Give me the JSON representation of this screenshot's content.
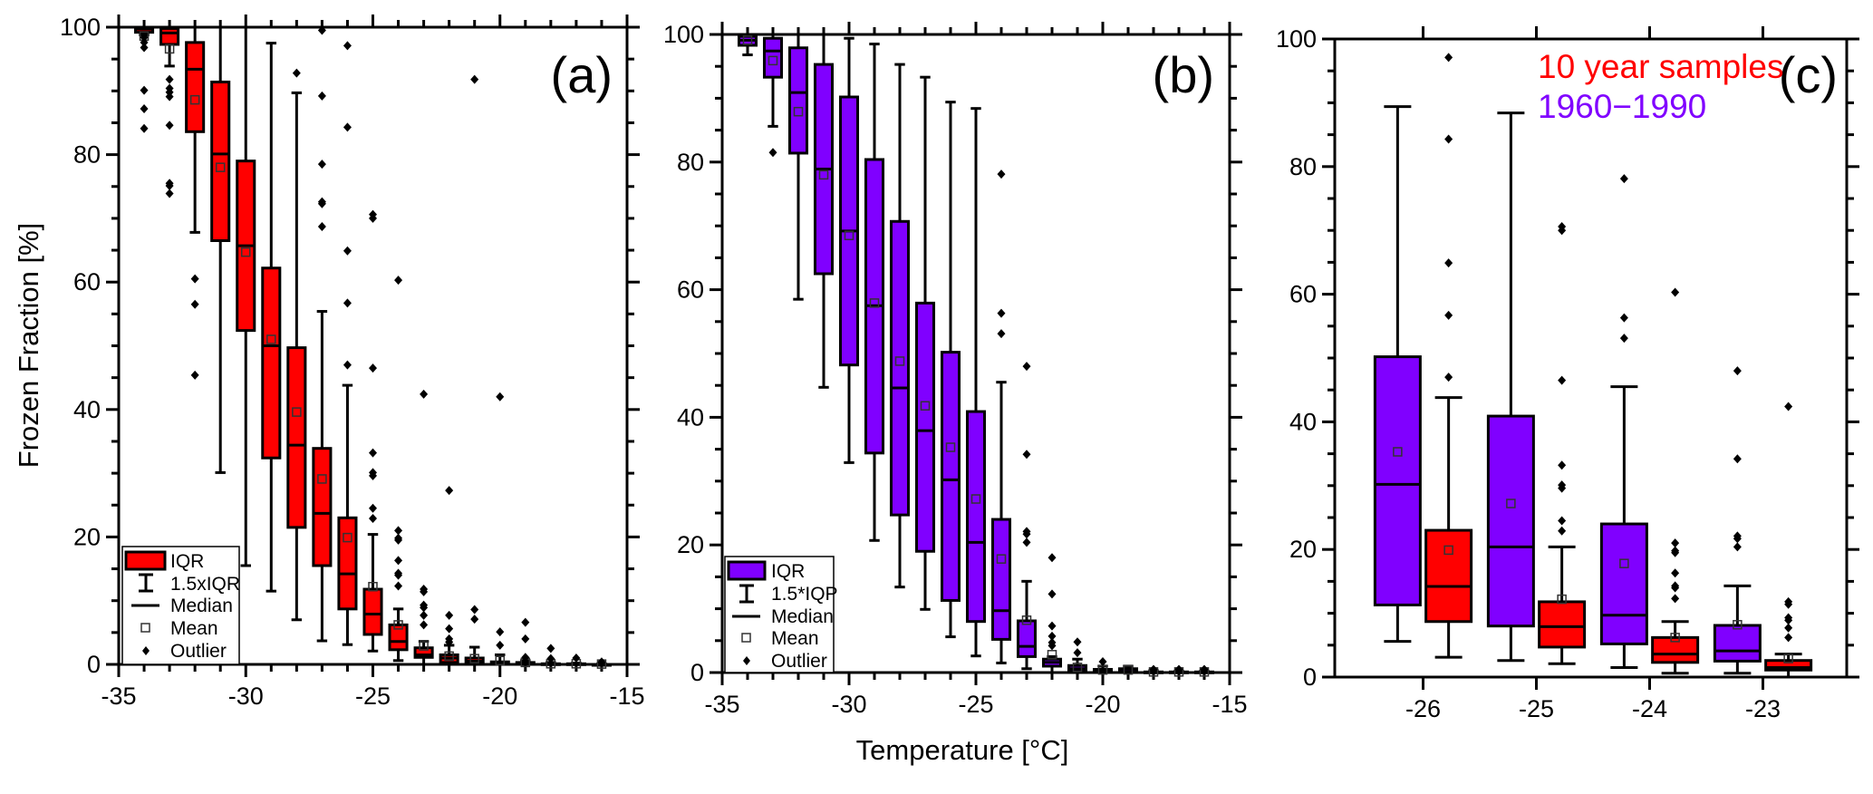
{
  "figure": {
    "ylabel": "Frozen Fraction [%]",
    "xlabel": "Temperature [°C]"
  },
  "legend_a": {
    "items": [
      "IQR",
      "1.5xIQR",
      "Median",
      "Mean",
      "Outlier"
    ]
  },
  "legend_b": {
    "items": [
      "IQR",
      "1.5*IQP",
      "Median",
      "Mean",
      "Outlier"
    ]
  },
  "legend_c": {
    "items": [
      "10 year samples",
      "1960−1990"
    ]
  },
  "colors": {
    "red": "#ff0000",
    "purple": "#8000ff",
    "outline": "#000000"
  },
  "chart_data": [
    {
      "type": "box",
      "panel_label": "(a)",
      "xlabel": "Temperature [°C]",
      "ylabel": "Frozen Fraction [%]",
      "xlim": [
        -35,
        -15
      ],
      "ylim": [
        0,
        100
      ],
      "x_ticks": [
        -35,
        -30,
        -25,
        -20,
        -15
      ],
      "y_ticks": [
        0,
        20,
        40,
        60,
        80,
        100
      ],
      "grid": false,
      "legend_position": "bottom-left",
      "series": [
        {
          "name": "10 year samples",
          "color": "#ff0000",
          "boxes": [
            {
              "x": -34,
              "q1": 99.2,
              "median": 99.7,
              "q3": 100,
              "mean": 98.6,
              "whisker_low": 98.8,
              "whisker_high": 100,
              "outliers": [
                98.4,
                97.6,
                96.8,
                90.1,
                87.2,
                84.1
              ]
            },
            {
              "x": -33,
              "q1": 97.3,
              "median": 99.1,
              "q3": 99.8,
              "mean": 96.6,
              "whisker_low": 93.9,
              "whisker_high": 100,
              "outliers": [
                91.8,
                90.4,
                89.8,
                89.1,
                84.6,
                75.5,
                75.1,
                73.9
              ]
            },
            {
              "x": -32,
              "q1": 83.6,
              "median": 93.4,
              "q3": 97.6,
              "mean": 88.6,
              "whisker_low": 67.8,
              "whisker_high": 100,
              "outliers": [
                60.5,
                56.5,
                45.4
              ]
            },
            {
              "x": -31,
              "q1": 66.5,
              "median": 80.1,
              "q3": 91.4,
              "mean": 78.0,
              "whisker_low": 30.1,
              "whisker_high": 100,
              "outliers": []
            },
            {
              "x": -30,
              "q1": 52.4,
              "median": 65.7,
              "q3": 79.0,
              "mean": 64.7,
              "whisker_low": 15.5,
              "whisker_high": 100,
              "outliers": []
            },
            {
              "x": -29,
              "q1": 32.4,
              "median": 50.0,
              "q3": 62.2,
              "mean": 51.0,
              "whisker_low": 11.5,
              "whisker_high": 97.5,
              "outliers": []
            },
            {
              "x": -28,
              "q1": 21.5,
              "median": 34.4,
              "q3": 49.7,
              "mean": 39.6,
              "whisker_low": 7.0,
              "whisker_high": 89.7,
              "outliers": [
                92.8
              ]
            },
            {
              "x": -27,
              "q1": 15.5,
              "median": 23.7,
              "q3": 33.9,
              "mean": 29.1,
              "whisker_low": 3.7,
              "whisker_high": 55.4,
              "outliers": [
                99.5,
                89.2,
                78.5,
                72.6,
                72.3,
                68.7
              ]
            },
            {
              "x": -26,
              "q1": 8.7,
              "median": 14.2,
              "q3": 23.0,
              "mean": 19.9,
              "whisker_low": 3.1,
              "whisker_high": 43.8,
              "outliers": [
                97.1,
                84.3,
                64.9,
                56.7,
                47.0
              ]
            },
            {
              "x": -25,
              "q1": 4.7,
              "median": 7.9,
              "q3": 11.8,
              "mean": 12.2,
              "whisker_low": 2.1,
              "whisker_high": 20.4,
              "outliers": [
                70.6,
                70.0,
                46.5,
                33.2,
                30.1,
                29.6,
                24.5,
                22.9
              ]
            },
            {
              "x": -24,
              "q1": 2.3,
              "median": 3.6,
              "q3": 6.2,
              "mean": 6.2,
              "whisker_low": 0.6,
              "whisker_high": 8.7,
              "outliers": [
                60.3,
                21.0,
                19.8,
                19.5,
                16.3,
                14.3,
                14.0,
                12.3
              ]
            },
            {
              "x": -23,
              "q1": 1.1,
              "median": 1.5,
              "q3": 2.6,
              "mean": 2.9,
              "whisker_low": 0,
              "whisker_high": 3.6,
              "outliers": [
                42.4,
                11.8,
                11.4,
                9.3,
                8.9,
                7.7,
                6.2
              ]
            },
            {
              "x": -22,
              "q1": 0.3,
              "median": 1.0,
              "q3": 1.5,
              "mean": 1.3,
              "whisker_low": 0,
              "whisker_high": 3.0,
              "outliers": [
                27.3,
                7.7,
                5.6,
                4.0,
                3.5
              ]
            },
            {
              "x": -21,
              "q1": 0.1,
              "median": 0.5,
              "q3": 1.0,
              "mean": 0.9,
              "whisker_low": 0,
              "whisker_high": 2.7,
              "outliers": [
                91.8,
                8.6,
                7.1
              ]
            },
            {
              "x": -20,
              "q1": 0,
              "median": 0.2,
              "q3": 0.4,
              "mean": 0.6,
              "whisker_low": 0,
              "whisker_high": 1.5,
              "outliers": [
                42.0,
                5.1,
                3.0
              ]
            },
            {
              "x": -19,
              "q1": 0,
              "median": 0.1,
              "q3": 0.3,
              "mean": 0.3,
              "whisker_low": 0,
              "whisker_high": 0.6,
              "outliers": [
                6.6,
                4.0,
                1.1
              ]
            },
            {
              "x": -18,
              "q1": 0,
              "median": 0,
              "q3": 0.1,
              "mean": 0.1,
              "whisker_low": 0,
              "whisker_high": 0.3,
              "outliers": [
                2.5,
                0.9
              ]
            },
            {
              "x": -17,
              "q1": 0,
              "median": 0,
              "q3": 0.1,
              "mean": 0.1,
              "whisker_low": 0,
              "whisker_high": 0.2,
              "outliers": [
                1.0
              ]
            },
            {
              "x": -16,
              "q1": 0,
              "median": 0,
              "q3": 0,
              "mean": 0.05,
              "whisker_low": 0,
              "whisker_high": 0.1,
              "outliers": [
                0.4
              ]
            }
          ]
        }
      ]
    },
    {
      "type": "box",
      "panel_label": "(b)",
      "xlabel": "Temperature [°C]",
      "ylabel": "",
      "xlim": [
        -35,
        -15
      ],
      "ylim": [
        0,
        100
      ],
      "x_ticks": [
        -35,
        -30,
        -25,
        -20,
        -15
      ],
      "y_ticks": [
        0,
        20,
        40,
        60,
        80,
        100
      ],
      "grid": false,
      "legend_position": "bottom-left",
      "series": [
        {
          "name": "1960−1990",
          "color": "#8000ff",
          "boxes": [
            {
              "x": -34,
              "q1": 98.3,
              "median": 99.1,
              "q3": 99.7,
              "mean": 99.1,
              "whisker_low": 96.8,
              "whisker_high": 100,
              "outliers": []
            },
            {
              "x": -33,
              "q1": 93.3,
              "median": 97.4,
              "q3": 99.4,
              "mean": 95.9,
              "whisker_low": 85.6,
              "whisker_high": 100,
              "outliers": [
                81.5
              ]
            },
            {
              "x": -32,
              "q1": 81.4,
              "median": 90.9,
              "q3": 97.9,
              "mean": 87.9,
              "whisker_low": 58.5,
              "whisker_high": 100,
              "outliers": []
            },
            {
              "x": -31,
              "q1": 62.5,
              "median": 78.9,
              "q3": 95.3,
              "mean": 78.0,
              "whisker_low": 44.7,
              "whisker_high": 100,
              "outliers": []
            },
            {
              "x": -30,
              "q1": 48.2,
              "median": 69.2,
              "q3": 90.2,
              "mean": 68.5,
              "whisker_low": 32.9,
              "whisker_high": 99.4,
              "outliers": []
            },
            {
              "x": -29,
              "q1": 34.4,
              "median": 57.5,
              "q3": 80.4,
              "mean": 57.9,
              "whisker_low": 20.7,
              "whisker_high": 98.5,
              "outliers": []
            },
            {
              "x": -28,
              "q1": 24.7,
              "median": 44.6,
              "q3": 70.7,
              "mean": 48.8,
              "whisker_low": 13.4,
              "whisker_high": 95.3,
              "outliers": []
            },
            {
              "x": -27,
              "q1": 19.0,
              "median": 37.9,
              "q3": 57.9,
              "mean": 41.8,
              "whisker_low": 9.9,
              "whisker_high": 93.3,
              "outliers": []
            },
            {
              "x": -26,
              "q1": 11.3,
              "median": 30.2,
              "q3": 50.2,
              "mean": 35.3,
              "whisker_low": 5.6,
              "whisker_high": 89.4,
              "outliers": []
            },
            {
              "x": -25,
              "q1": 8.0,
              "median": 20.4,
              "q3": 40.9,
              "mean": 27.2,
              "whisker_low": 2.6,
              "whisker_high": 88.4,
              "outliers": []
            },
            {
              "x": -24,
              "q1": 5.2,
              "median": 9.7,
              "q3": 24.0,
              "mean": 17.8,
              "whisker_low": 1.5,
              "whisker_high": 45.5,
              "outliers": [
                78.1,
                56.3,
                53.1
              ]
            },
            {
              "x": -23,
              "q1": 2.5,
              "median": 4.1,
              "q3": 8.1,
              "mean": 8.2,
              "whisker_low": 0.6,
              "whisker_high": 14.3,
              "outliers": [
                48.0,
                34.2,
                22.1,
                21.7,
                20.4
              ]
            },
            {
              "x": -22,
              "q1": 1.0,
              "median": 1.6,
              "q3": 2.1,
              "mean": 2.8,
              "whisker_low": 0,
              "whisker_high": 2.5,
              "outliers": [
                18.0,
                12.3,
                7.3,
                5.7,
                4.7,
                4.2
              ]
            },
            {
              "x": -21,
              "q1": 0.2,
              "median": 0.6,
              "q3": 1.1,
              "mean": 0.8,
              "whisker_low": 0,
              "whisker_high": 2.1,
              "outliers": [
                4.8,
                3.1
              ]
            },
            {
              "x": -20,
              "q1": 0,
              "median": 0.2,
              "q3": 0.5,
              "mean": 0.4,
              "whisker_low": 0,
              "whisker_high": 1.0,
              "outliers": [
                1.7
              ]
            },
            {
              "x": -19,
              "q1": 0,
              "median": 0.2,
              "q3": 0.6,
              "mean": 0.4,
              "whisker_low": 0,
              "whisker_high": 1.0,
              "outliers": []
            },
            {
              "x": -18,
              "q1": 0,
              "median": 0,
              "q3": 0.1,
              "mean": 0.1,
              "whisker_low": 0,
              "whisker_high": 0.3,
              "outliers": [
                0.5
              ]
            },
            {
              "x": -17,
              "q1": 0,
              "median": 0,
              "q3": 0.1,
              "mean": 0.1,
              "whisker_low": 0,
              "whisker_high": 0.2,
              "outliers": [
                0.5
              ]
            },
            {
              "x": -16,
              "q1": 0,
              "median": 0,
              "q3": 0.1,
              "mean": 0.1,
              "whisker_low": 0,
              "whisker_high": 0.2,
              "outliers": [
                0.5
              ]
            }
          ]
        }
      ]
    },
    {
      "type": "box",
      "panel_label": "(c)",
      "xlabel": "Temperature [°C]",
      "ylabel": "",
      "categories": [
        -26,
        -25,
        -24,
        -23
      ],
      "ylim": [
        0,
        100
      ],
      "y_ticks": [
        0,
        20,
        40,
        60,
        80,
        100
      ],
      "grid": false,
      "legend_position": "top-right",
      "series": [
        {
          "name": "1960−1990",
          "color": "#8000ff",
          "boxes": [
            {
              "x": -26,
              "q1": 11.3,
              "median": 30.2,
              "q3": 50.2,
              "mean": 35.3,
              "whisker_low": 5.6,
              "whisker_high": 89.4,
              "outliers": []
            },
            {
              "x": -25,
              "q1": 8.0,
              "median": 20.4,
              "q3": 40.9,
              "mean": 27.2,
              "whisker_low": 2.6,
              "whisker_high": 88.4,
              "outliers": []
            },
            {
              "x": -24,
              "q1": 5.2,
              "median": 9.7,
              "q3": 24.0,
              "mean": 17.8,
              "whisker_low": 1.5,
              "whisker_high": 45.5,
              "outliers": [
                78.1,
                56.3,
                53.1
              ]
            },
            {
              "x": -23,
              "q1": 2.5,
              "median": 4.1,
              "q3": 8.1,
              "mean": 8.2,
              "whisker_low": 0.6,
              "whisker_high": 14.3,
              "outliers": [
                48.0,
                34.2,
                22.1,
                21.7,
                20.4
              ]
            }
          ]
        },
        {
          "name": "10 year samples",
          "color": "#ff0000",
          "boxes": [
            {
              "x": -26,
              "q1": 8.7,
              "median": 14.2,
              "q3": 23.0,
              "mean": 19.9,
              "whisker_low": 3.1,
              "whisker_high": 43.8,
              "outliers": [
                97.1,
                84.3,
                64.9,
                56.7,
                47.0
              ]
            },
            {
              "x": -25,
              "q1": 4.7,
              "median": 7.9,
              "q3": 11.8,
              "mean": 12.2,
              "whisker_low": 2.1,
              "whisker_high": 20.4,
              "outliers": [
                70.6,
                70.0,
                46.5,
                33.2,
                30.1,
                29.6,
                24.5,
                22.9
              ]
            },
            {
              "x": -24,
              "q1": 2.3,
              "median": 3.6,
              "q3": 6.2,
              "mean": 6.2,
              "whisker_low": 0.6,
              "whisker_high": 8.7,
              "outliers": [
                60.3,
                21.0,
                19.8,
                19.5,
                16.3,
                14.3,
                14.0,
                12.3
              ]
            },
            {
              "x": -23,
              "q1": 1.1,
              "median": 1.5,
              "q3": 2.6,
              "mean": 2.9,
              "whisker_low": 0,
              "whisker_high": 3.6,
              "outliers": [
                42.4,
                11.8,
                11.4,
                9.3,
                8.9,
                7.7,
                6.2
              ]
            }
          ]
        }
      ]
    }
  ]
}
